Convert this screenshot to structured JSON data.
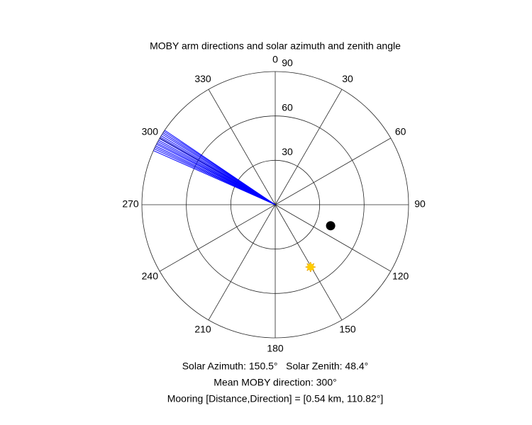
{
  "chart_data": {
    "type": "polar",
    "title": "MOBY arm directions and solar azimuth and zenith angle",
    "rlim": [
      0,
      90
    ],
    "rticks": [
      30,
      60,
      90
    ],
    "thetaticks": [
      0,
      30,
      60,
      90,
      120,
      150,
      180,
      210,
      240,
      270,
      300,
      330
    ],
    "series": [
      {
        "color": "#0000ff",
        "marker": "line",
        "theta": [
          294,
          294.8,
          295.5,
          296.2,
          297,
          297.6,
          298.3,
          299,
          299.8,
          300.5,
          301.2,
          302,
          302.7,
          303.4,
          304
        ],
        "r": [
          90,
          90,
          90,
          90,
          90,
          90,
          90,
          90,
          90,
          90,
          90,
          90,
          90,
          90,
          90
        ]
      },
      {
        "color": "#000000",
        "marker": "dot",
        "theta": [
          110.82
        ],
        "r": [
          40
        ]
      },
      {
        "color": "#ffcc00",
        "marker": "sun",
        "theta": [
          150.5
        ],
        "r": [
          48.4
        ]
      }
    ],
    "annotations": [
      "Solar Azimuth: 150.5°   Solar Zenith: 48.4°",
      "Mean MOBY direction: 300°",
      "Mooring [Distance,Direction] = [0.54 km, 110.82°]"
    ]
  }
}
